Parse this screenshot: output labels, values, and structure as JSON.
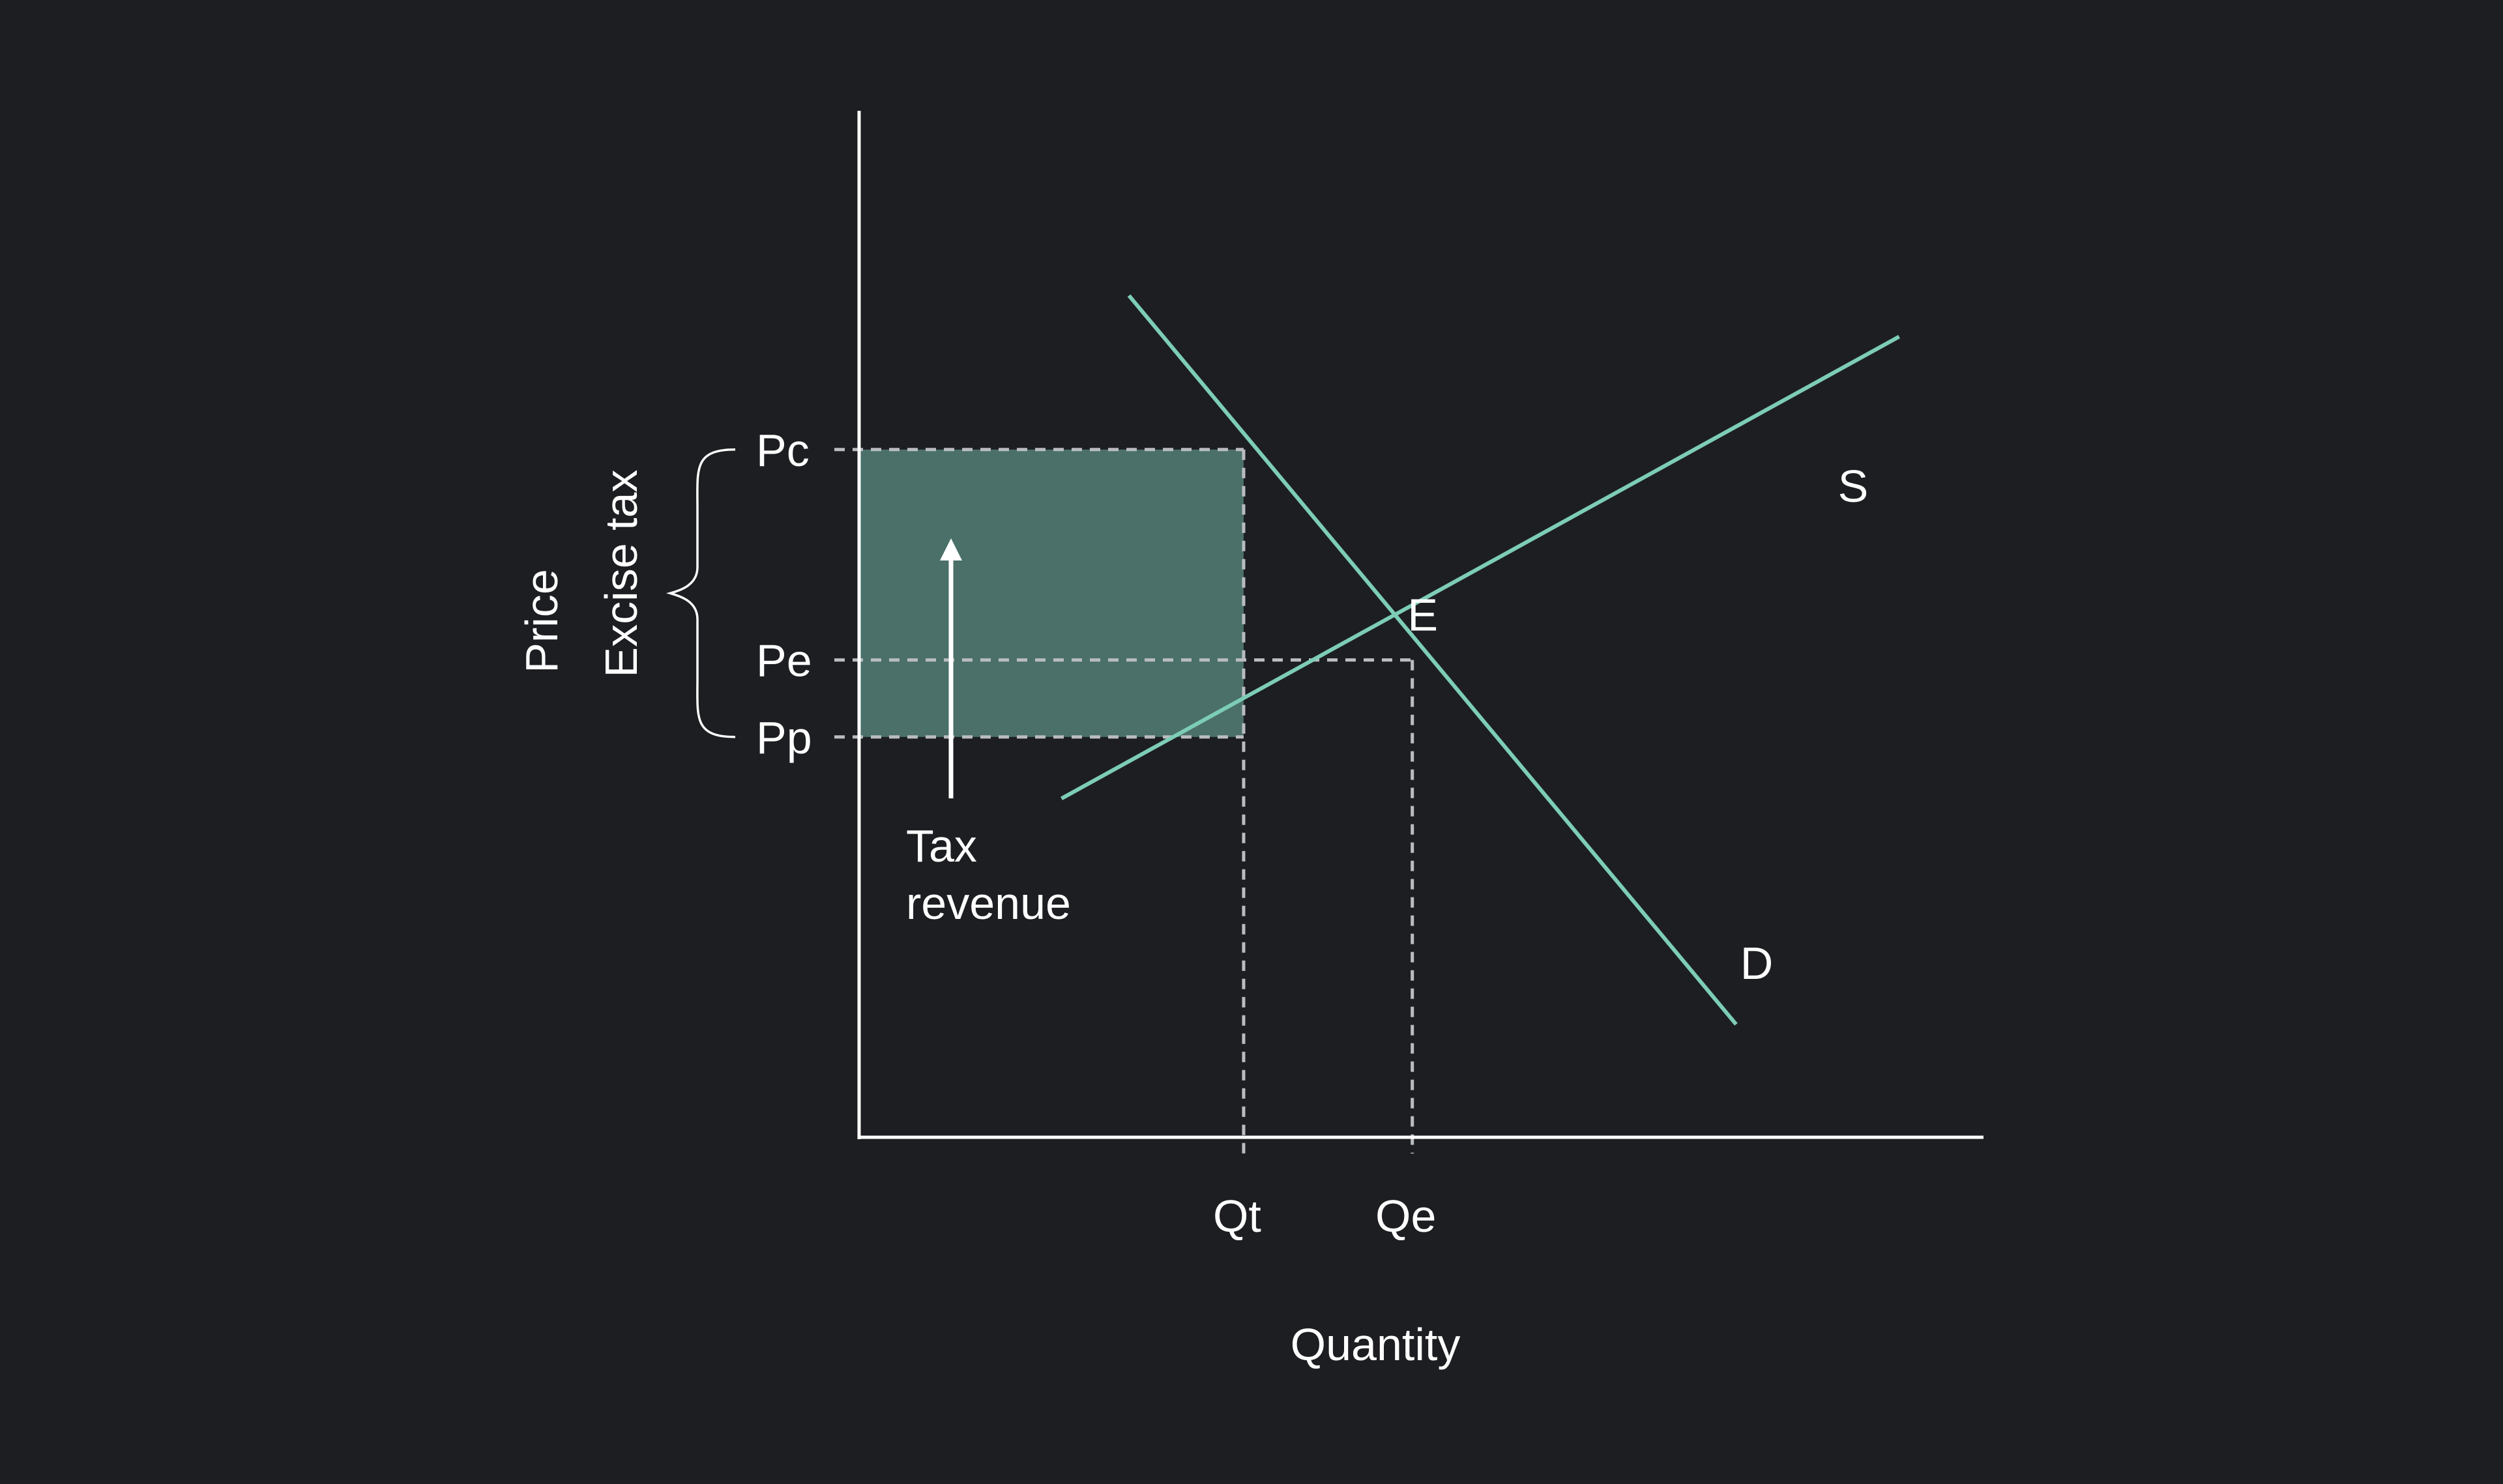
{
  "chart_data": {
    "type": "line",
    "title": "",
    "xlabel": "Quantity",
    "ylabel": "Price",
    "xlim": [
      0,
      10
    ],
    "ylim": [
      0,
      10
    ],
    "grid": false,
    "colors": {
      "background": "#1d1e22",
      "axis": "#ffffff",
      "curve": "#7dcdb6",
      "tax_area": "#4a7069",
      "guide": "#b9bcc0",
      "text": "#ffffff"
    },
    "series": [
      {
        "name": "D",
        "points": [
          [
            2.4,
            8.2
          ],
          [
            7.8,
            1.1
          ]
        ]
      },
      {
        "name": "S",
        "points": [
          [
            1.8,
            3.3
          ],
          [
            9.25,
            7.8
          ]
        ]
      }
    ],
    "price_levels": [
      {
        "label": "Pc",
        "value": 6.7
      },
      {
        "label": "Pe",
        "value": 4.65
      },
      {
        "label": "Pp",
        "value": 3.9
      }
    ],
    "quantity_levels": [
      {
        "label": "Qt",
        "value": 3.42
      },
      {
        "label": "Qe",
        "value": 4.92
      }
    ],
    "equilibrium": {
      "label": "E",
      "x": 4.92,
      "y": 4.65
    },
    "tax_region": {
      "x0": 0,
      "x1": 3.42,
      "y0": 3.9,
      "y1": 6.7
    },
    "annotations": {
      "tax_revenue_line1": "Tax",
      "tax_revenue_line2": "revenue",
      "excise_tax": "Excise tax"
    }
  }
}
